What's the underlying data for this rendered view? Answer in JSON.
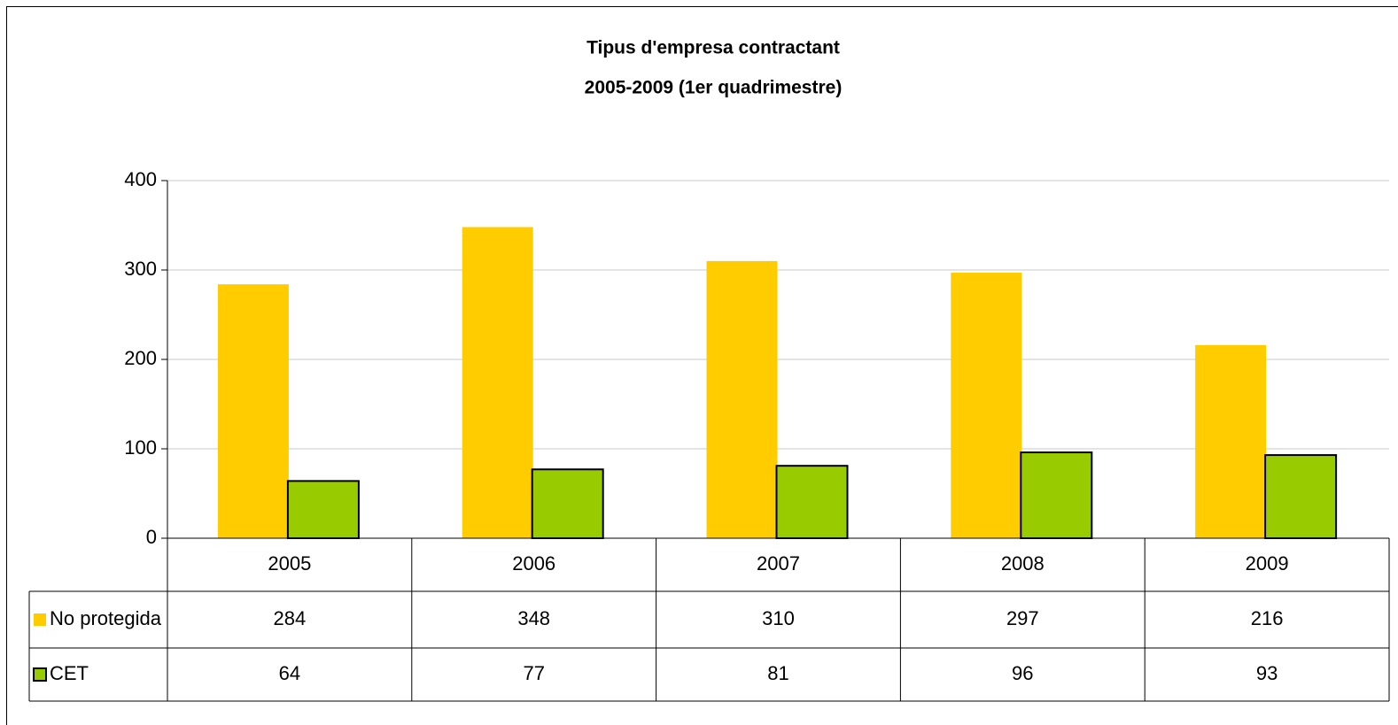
{
  "chart_data": {
    "type": "bar",
    "title": "Tipus d'empresa contractant",
    "subtitle": "2005-2009 (1er quadrimestre)",
    "categories": [
      "2005",
      "2006",
      "2007",
      "2008",
      "2009"
    ],
    "series": [
      {
        "name": "No protegida",
        "color": "#ffcc00",
        "values": [
          284,
          348,
          310,
          297,
          216
        ]
      },
      {
        "name": "CET",
        "color": "#99cc00",
        "values": [
          64,
          77,
          81,
          96,
          93
        ]
      }
    ],
    "ylim": [
      0,
      400
    ],
    "yticks": [
      0,
      100,
      200,
      300,
      400
    ],
    "grid": true,
    "data_table": true
  }
}
